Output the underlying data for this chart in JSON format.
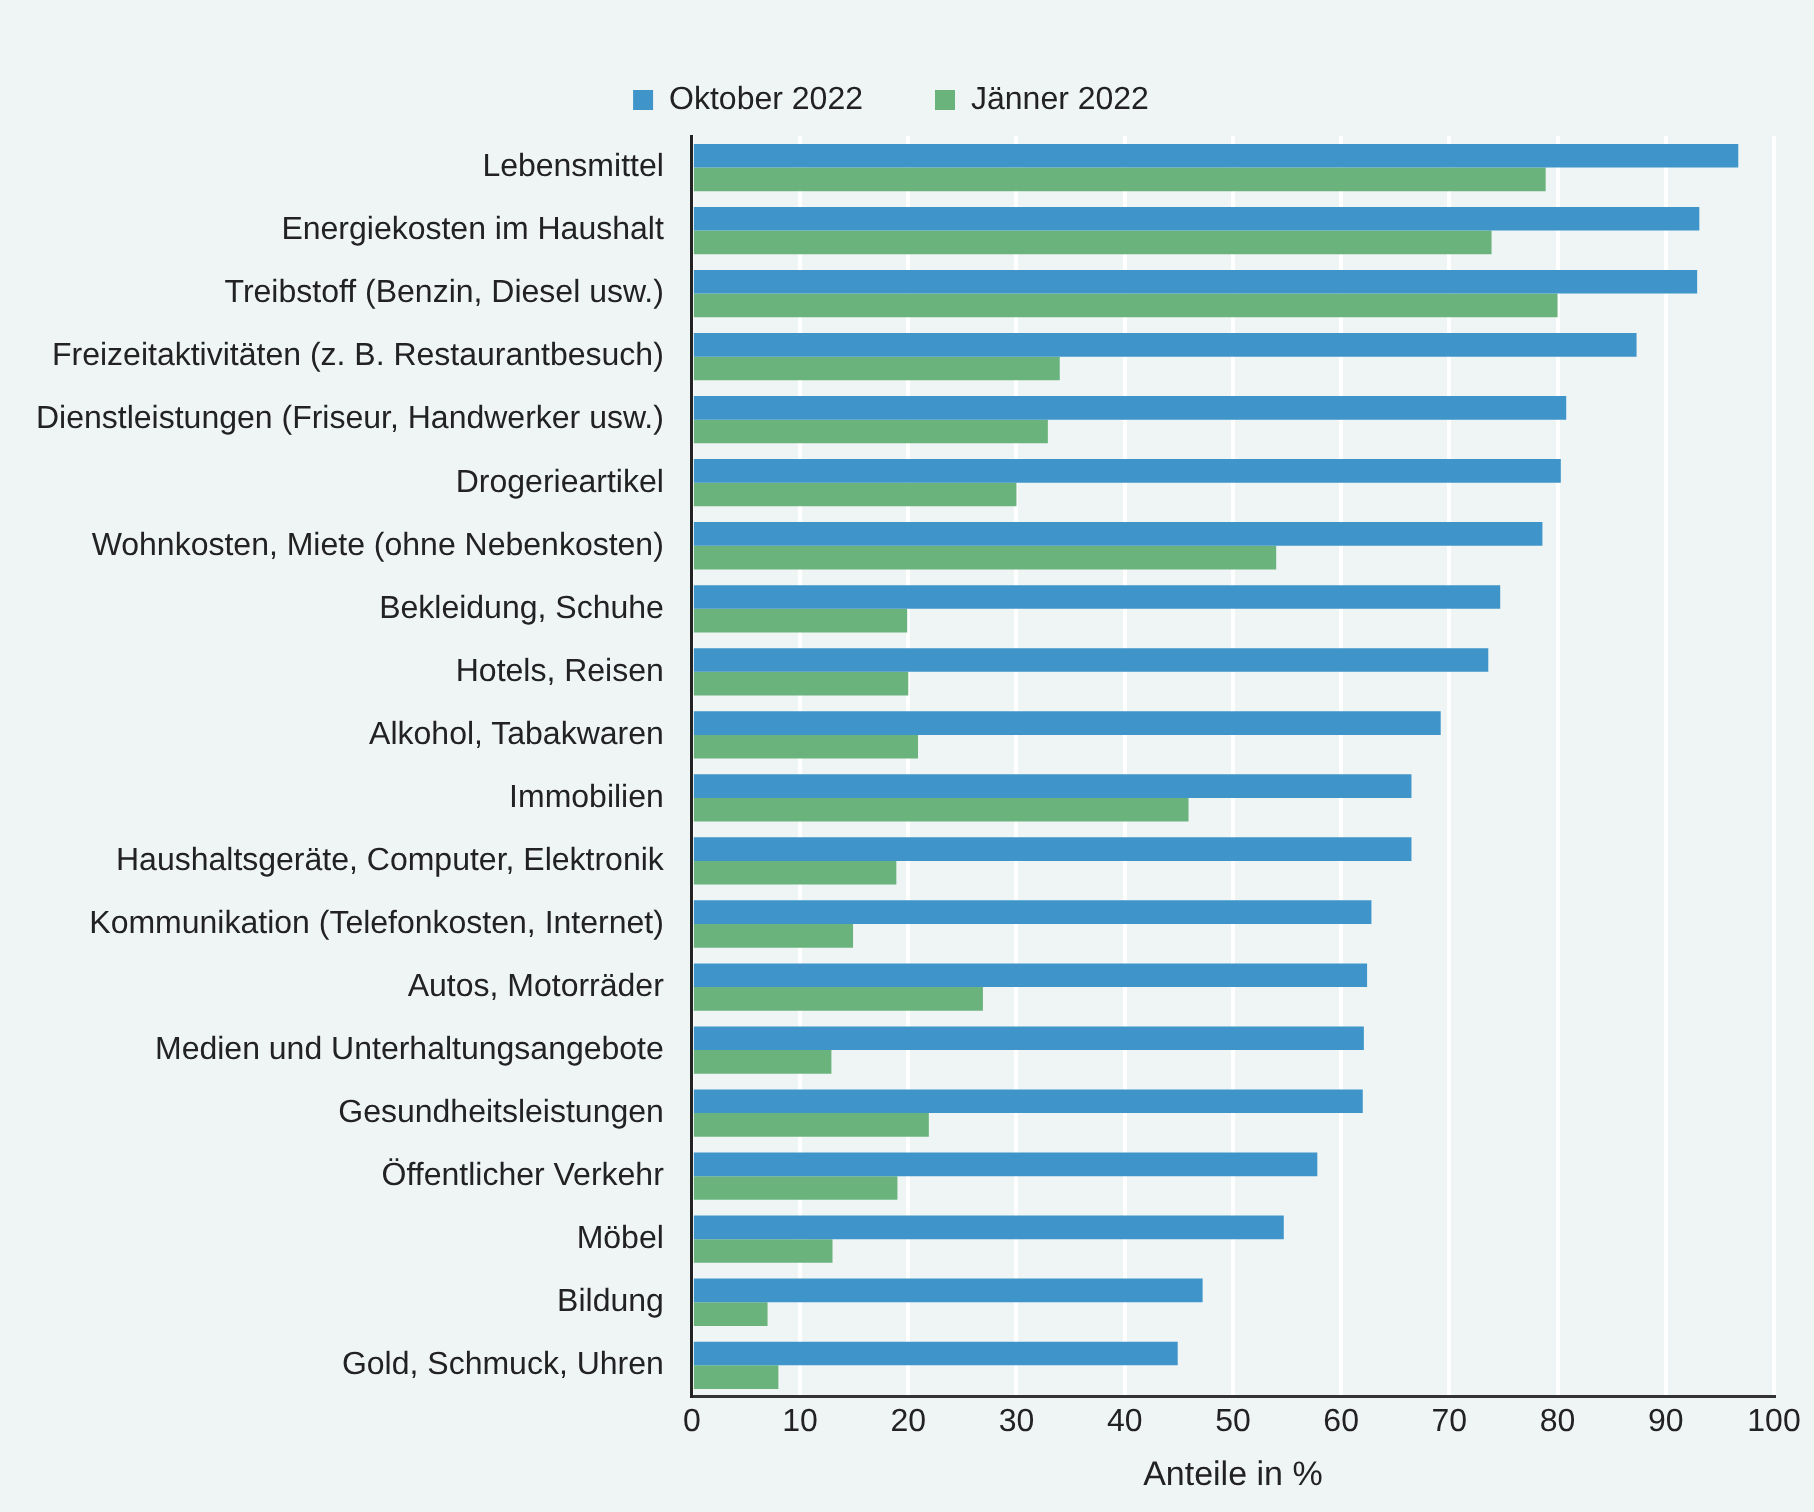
{
  "chart_data": {
    "type": "bar",
    "orientation": "horizontal",
    "xlabel": "Anteile in %",
    "categories": [
      "Lebensmittel",
      "Energiekosten im Haushalt",
      "Treibstoff (Benzin, Diesel usw.)",
      "Freizeitaktivitäten (z. B. Restaurantbesuch)",
      "Dienstleistungen (Friseur, Handwerker usw.)",
      "Drogerieartikel",
      "Wohnkosten, Miete (ohne Nebenkosten)",
      "Bekleidung, Schuhe",
      "Hotels, Reisen",
      "Alkohol, Tabakwaren",
      "Immobilien",
      "Haushaltsgeräte, Computer, Elektronik",
      "Kommunikation (Telefonkosten, Internet)",
      "Autos, Motorräder",
      "Medien und Unterhaltungsangebote",
      "Gesundheitsleistungen",
      "Öffentlicher Verkehr",
      "Möbel",
      "Bildung",
      "Gold, Schmuck, Uhren"
    ],
    "series": [
      {
        "name": "Oktober 2022",
        "color": "#3f95c9",
        "values": [
          96.7,
          93.1,
          92.9,
          87.3,
          80.8,
          80.3,
          78.6,
          74.7,
          73.6,
          69.2,
          66.5,
          66.5,
          62.8,
          62.4,
          62.1,
          62.0,
          57.8,
          54.7,
          47.2,
          44.9
        ]
      },
      {
        "name": "Jänner 2022",
        "color": "#6bb37c",
        "values": [
          78.9,
          73.9,
          80.0,
          34.0,
          32.9,
          30.0,
          54.0,
          19.9,
          20.0,
          20.9,
          45.9,
          18.9,
          14.9,
          26.9,
          12.9,
          21.9,
          19.0,
          13.0,
          7.0,
          8.0
        ]
      }
    ],
    "xlim": [
      0,
      100
    ],
    "xticks": [
      0,
      10,
      20,
      30,
      40,
      50,
      60,
      70,
      80,
      90,
      100
    ],
    "grid": "x",
    "legend": "top"
  }
}
